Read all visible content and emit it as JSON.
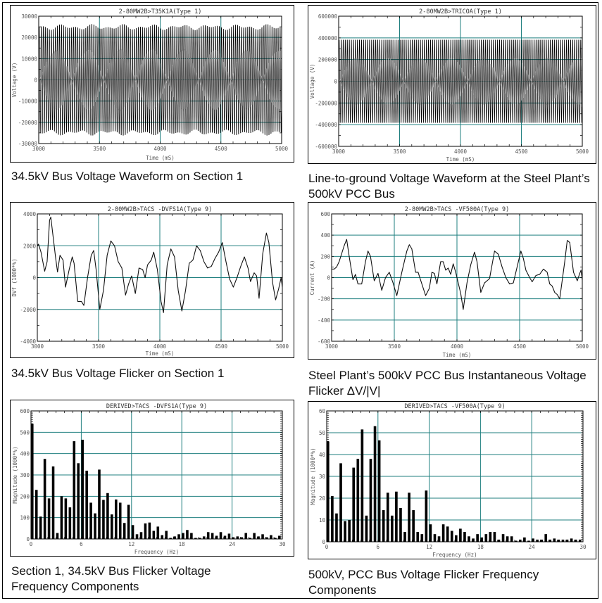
{
  "captions": [
    "34.5kV Bus Voltage Waveform on Section 1",
    "Line-to-ground Voltage Waveform at the Steel Plant’s 500kV PCC Bus",
    "34.5kV Bus Voltage Flicker on Section 1",
    "Steel Plant’s 500kV PCC Bus Instantaneous Voltage Flicker ΔV/|V|",
    "Section 1, 34.5kV Bus Flicker Voltage Frequency Components",
    "500kV, PCC Bus Voltage Flicker Frequency Components"
  ],
  "colors": {
    "grid": "#1f7f7f",
    "trace": "#111111",
    "wave": "#4a4a4a"
  },
  "chart_data": [
    {
      "type": "line",
      "title": "2-80MW2B>T35K1A(Type 1)",
      "xlabel": "Time (mS)",
      "ylabel": "Voltage (V)",
      "xlim": [
        3000,
        5000
      ],
      "ylim": [
        -30000,
        30000
      ],
      "xticks": [
        3000,
        3500,
        4000,
        4500,
        5000
      ],
      "yticks": [
        -30000,
        -20000,
        -10000,
        0,
        10000,
        20000,
        30000
      ],
      "ytick_labels": [
        "-30000",
        "-20000",
        "-10000",
        "0",
        "10000",
        "20000",
        "30000"
      ],
      "grid": true,
      "signal": {
        "kind": "sinusoid",
        "frequency_hz": 60,
        "amplitude": 26000,
        "amplitude_variation": 1500
      }
    },
    {
      "type": "line",
      "title": "2-80MW2B>TRICOA(Type 1)",
      "xlabel": "Time (mS)",
      "ylabel": "Voltage (V)",
      "xlim": [
        3000,
        5000
      ],
      "ylim": [
        -600000,
        600000
      ],
      "xticks": [
        3000,
        3500,
        4000,
        4500,
        5000
      ],
      "yticks": [
        -600000,
        -400000,
        -200000,
        0,
        200000,
        400000,
        600000
      ],
      "ytick_labels": [
        "-600000",
        "-400000",
        "-200000",
        "0",
        "200000",
        "400000",
        "600000"
      ],
      "grid": true,
      "signal": {
        "kind": "sinusoid",
        "frequency_hz": 60,
        "amplitude": 400000,
        "amplitude_variation": 0
      }
    },
    {
      "type": "line",
      "title": "2-80MW2B>TACS   -DVFS1A(Type 9)",
      "xlabel": "Time (mS)",
      "ylabel": "DVf (1000*%)",
      "xlim": [
        3000,
        5000
      ],
      "ylim": [
        -4000,
        4000
      ],
      "xticks": [
        3000,
        3500,
        4000,
        4500,
        5000
      ],
      "yticks": [
        -4000,
        -2000,
        0,
        2000,
        4000
      ],
      "ytick_labels": [
        "-4000",
        "-2000",
        "0",
        "2000",
        "4000"
      ],
      "grid": true,
      "x": [
        3000,
        3010,
        3030,
        3060,
        3080,
        3100,
        3110,
        3130,
        3150,
        3165,
        3185,
        3210,
        3230,
        3260,
        3285,
        3300,
        3330,
        3360,
        3380,
        3410,
        3440,
        3460,
        3480,
        3510,
        3540,
        3570,
        3600,
        3630,
        3660,
        3690,
        3720,
        3745,
        3770,
        3800,
        3830,
        3860,
        3880,
        3900,
        3930,
        3950,
        3980,
        4010,
        4030,
        4060,
        4090,
        4120,
        4150,
        4180,
        4210,
        4240,
        4270,
        4300,
        4330,
        4360,
        4390,
        4420,
        4450,
        4480,
        4510,
        4540,
        4570,
        4600,
        4630,
        4660,
        4690,
        4720,
        4740,
        4770,
        4790,
        4810,
        4840,
        4870,
        4890,
        4920,
        4945,
        4970,
        4990,
        5000
      ],
      "y": [
        2000,
        2100,
        1600,
        400,
        1000,
        3600,
        3800,
        2500,
        1200,
        350,
        1400,
        1100,
        -600,
        500,
        1300,
        900,
        -1500,
        -1500,
        -1750,
        0,
        1400,
        1700,
        500,
        -2000,
        -800,
        1400,
        2300,
        2000,
        1000,
        600,
        -1100,
        -400,
        100,
        -1000,
        600,
        500,
        0,
        800,
        1100,
        1600,
        500,
        -1500,
        -2200,
        800,
        1800,
        1300,
        -800,
        -2100,
        -800,
        900,
        1100,
        2000,
        1700,
        1000,
        600,
        700,
        1200,
        1600,
        2200,
        1000,
        -100,
        -600,
        0,
        700,
        1300,
        600,
        -250,
        300,
        100,
        -1300,
        1500,
        2800,
        2200,
        -300,
        -1400,
        -700,
        0,
        -600
      ]
    },
    {
      "type": "line",
      "title": "2-80MW2B>TACS   -VF500A(Type 9)",
      "xlabel": "Time (mS)",
      "ylabel": "Current (A)",
      "xlim": [
        3000,
        5000
      ],
      "ylim": [
        -600,
        600
      ],
      "xticks": [
        3000,
        3500,
        4000,
        4500,
        5000
      ],
      "yticks": [
        -600,
        -400,
        -200,
        0,
        200,
        400,
        600
      ],
      "ytick_labels": [
        "-600",
        "-400",
        "-200",
        "0",
        "200",
        "400",
        "600"
      ],
      "grid": true,
      "x": [
        3000,
        3020,
        3040,
        3060,
        3100,
        3120,
        3140,
        3170,
        3190,
        3210,
        3240,
        3270,
        3290,
        3310,
        3340,
        3370,
        3400,
        3430,
        3460,
        3490,
        3520,
        3560,
        3600,
        3620,
        3640,
        3670,
        3690,
        3720,
        3750,
        3780,
        3800,
        3820,
        3840,
        3870,
        3890,
        3910,
        3930,
        3950,
        3970,
        3990,
        4030,
        4050,
        4080,
        4110,
        4140,
        4160,
        4190,
        4220,
        4260,
        4300,
        4330,
        4360,
        4390,
        4420,
        4450,
        4480,
        4510,
        4530,
        4550,
        4580,
        4600,
        4630,
        4660,
        4690,
        4720,
        4740,
        4760,
        4780,
        4800,
        4820,
        4860,
        4880,
        4900,
        4930,
        4960,
        4980,
        4990,
        5000
      ],
      "y": [
        80,
        80,
        100,
        150,
        300,
        360,
        200,
        -20,
        30,
        -60,
        -60,
        150,
        250,
        200,
        -30,
        40,
        -120,
        0,
        50,
        -50,
        -170,
        50,
        250,
        310,
        270,
        50,
        50,
        -60,
        -170,
        -100,
        50,
        40,
        -60,
        150,
        150,
        70,
        90,
        30,
        130,
        50,
        -150,
        -300,
        -50,
        120,
        240,
        150,
        -140,
        -50,
        -10,
        250,
        220,
        100,
        0,
        -60,
        -50,
        100,
        250,
        180,
        70,
        0,
        -40,
        20,
        30,
        80,
        50,
        -60,
        -80,
        -140,
        -160,
        -200,
        150,
        350,
        330,
        50,
        -30,
        40,
        70,
        -20
      ]
    },
    {
      "type": "bar",
      "title": "DERIVED>TACS   -DVFS1A(Type 9)",
      "xlabel": "Frequency (Hz)",
      "ylabel": "Magnitude (1000*%)",
      "xlim": [
        0,
        30
      ],
      "ylim": [
        0,
        600
      ],
      "xticks": [
        0,
        6,
        12,
        18,
        24,
        30
      ],
      "yticks": [
        0,
        100,
        200,
        300,
        400,
        500,
        600
      ],
      "ytick_labels": [
        "0",
        "100",
        "200",
        "300",
        "400",
        "500",
        "600"
      ],
      "grid": true,
      "bin_width_hz": 0.5,
      "values": [
        540,
        230,
        105,
        375,
        190,
        340,
        28,
        200,
        190,
        148,
        458,
        355,
        465,
        320,
        170,
        120,
        325,
        183,
        215,
        115,
        185,
        170,
        75,
        160,
        65,
        22,
        32,
        73,
        77,
        38,
        58,
        18,
        38,
        5,
        12,
        22,
        28,
        42,
        28,
        5,
        5,
        12,
        32,
        28,
        15,
        32,
        15,
        25,
        8,
        12,
        8,
        28,
        5,
        28,
        12,
        22,
        8,
        18,
        5,
        15
      ]
    },
    {
      "type": "bar",
      "title": "DERIVED>TACS   -VF500A(Type 9)",
      "xlabel": "Frequency (Hz)",
      "ylabel": "Magnitude (1000*%)",
      "xlim": [
        0,
        30
      ],
      "ylim": [
        0,
        60
      ],
      "xticks": [
        0,
        6,
        12,
        18,
        24,
        30
      ],
      "yticks": [
        0,
        10,
        20,
        30,
        40,
        50,
        60
      ],
      "ytick_labels": [
        "0",
        "10",
        "20",
        "30",
        "40",
        "50",
        "60"
      ],
      "grid": true,
      "bin_width_hz": 0.5,
      "values": [
        46,
        21,
        13,
        36,
        9.5,
        10,
        34,
        38,
        51.5,
        12,
        38,
        53,
        46.5,
        14.5,
        22.5,
        12,
        23,
        15.5,
        4.5,
        22.5,
        14.5,
        4.5,
        3.5,
        23.5,
        8,
        3.5,
        2.5,
        8,
        7,
        5,
        3,
        6,
        4.5,
        2.5,
        1.5,
        3.5,
        2,
        3.5,
        4.5,
        4.5,
        1,
        3.5,
        2.5,
        2.5,
        0.5,
        1,
        2,
        0.5,
        1.5,
        1,
        1,
        3.5,
        1,
        1.5,
        1,
        1,
        1,
        1.5,
        1,
        1
      ]
    }
  ]
}
